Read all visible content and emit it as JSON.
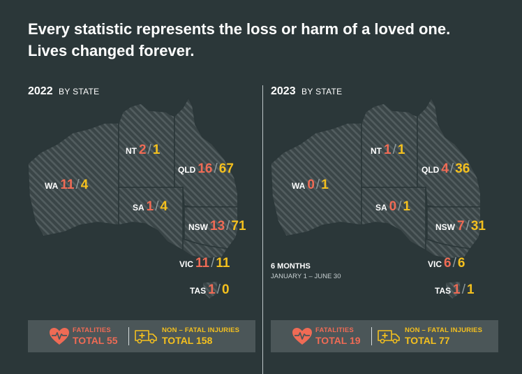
{
  "headline": {
    "line1": "Every statistic represents the loss or harm of a loved one.",
    "line2": "Lives changed forever."
  },
  "colors": {
    "background": "#2b3739",
    "fatalities": "#ef6b55",
    "injuries": "#f4c01e",
    "totals_bar": "#4b5658",
    "map_fill": "#3c4749"
  },
  "panels": [
    {
      "year": "2022",
      "by_state": "BY STATE",
      "states": {
        "wa": {
          "abbr": "WA",
          "fatalities": "11",
          "injuries": "4"
        },
        "nt": {
          "abbr": "NT",
          "fatalities": "2",
          "injuries": "1"
        },
        "qld": {
          "abbr": "QLD",
          "fatalities": "16",
          "injuries": "67"
        },
        "sa": {
          "abbr": "SA",
          "fatalities": "1",
          "injuries": "4"
        },
        "nsw": {
          "abbr": "NSW",
          "fatalities": "13",
          "injuries": "71"
        },
        "vic": {
          "abbr": "VIC",
          "fatalities": "11",
          "injuries": "11"
        },
        "tas": {
          "abbr": "TAS",
          "fatalities": "1",
          "injuries": "0"
        }
      },
      "totals": {
        "fatalities_label": "FATALITIES",
        "fatalities_total": "TOTAL 55",
        "injuries_label": "NON – FATAL INJURIES",
        "injuries_total": "TOTAL 158",
        "fatalities_icon": "heart-pulse-icon",
        "injuries_icon": "ambulance-icon"
      }
    },
    {
      "year": "2023",
      "by_state": "BY STATE",
      "period_title": "6 MONTHS",
      "period_range": "JANUARY 1 – JUNE 30",
      "states": {
        "wa": {
          "abbr": "WA",
          "fatalities": "0",
          "injuries": "1"
        },
        "nt": {
          "abbr": "NT",
          "fatalities": "1",
          "injuries": "1"
        },
        "qld": {
          "abbr": "QLD",
          "fatalities": "4",
          "injuries": "36"
        },
        "sa": {
          "abbr": "SA",
          "fatalities": "0",
          "injuries": "1"
        },
        "nsw": {
          "abbr": "NSW",
          "fatalities": "7",
          "injuries": "31"
        },
        "vic": {
          "abbr": "VIC",
          "fatalities": "6",
          "injuries": "6"
        },
        "tas": {
          "abbr": "TAS",
          "fatalities": "1",
          "injuries": "1"
        }
      },
      "totals": {
        "fatalities_label": "FATALITIES",
        "fatalities_total": "TOTAL 19",
        "injuries_label": "NON – FATAL INJURIES",
        "injuries_total": "TOTAL 77",
        "fatalities_icon": "heart-pulse-icon",
        "injuries_icon": "ambulance-icon"
      }
    }
  ]
}
